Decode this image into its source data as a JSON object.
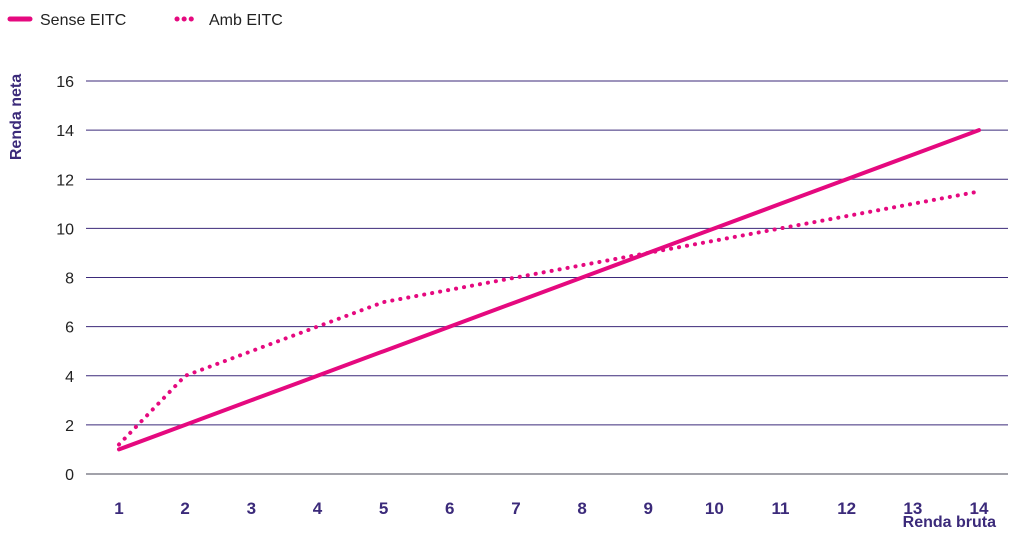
{
  "chart_data": {
    "type": "line",
    "title": "",
    "xlabel": "Renda bruta",
    "ylabel": "Renda neta",
    "x": [
      1,
      2,
      3,
      4,
      5,
      6,
      7,
      8,
      9,
      10,
      11,
      12,
      13,
      14
    ],
    "xlim": [
      1,
      14
    ],
    "ylim": [
      0,
      16
    ],
    "yticks": [
      0,
      2,
      4,
      6,
      8,
      10,
      12,
      14,
      16
    ],
    "grid": "horizontal",
    "legend_position": "top-left",
    "series": [
      {
        "name": "Sense EITC",
        "style": "solid",
        "color": "#e5097f",
        "values": [
          1,
          2,
          3,
          4,
          5,
          6,
          7,
          8,
          9,
          10,
          11,
          12,
          13,
          14
        ]
      },
      {
        "name": "Amb EITC",
        "style": "dotted",
        "color": "#e5097f",
        "values": [
          1.2,
          4,
          5,
          6,
          7,
          7.5,
          8,
          8.5,
          9,
          9.5,
          10,
          10.5,
          11,
          11.5
        ]
      }
    ]
  },
  "colors": {
    "grid": "#3b2a7a",
    "axis_text": "#3b2a7a",
    "line": "#e5097f"
  }
}
